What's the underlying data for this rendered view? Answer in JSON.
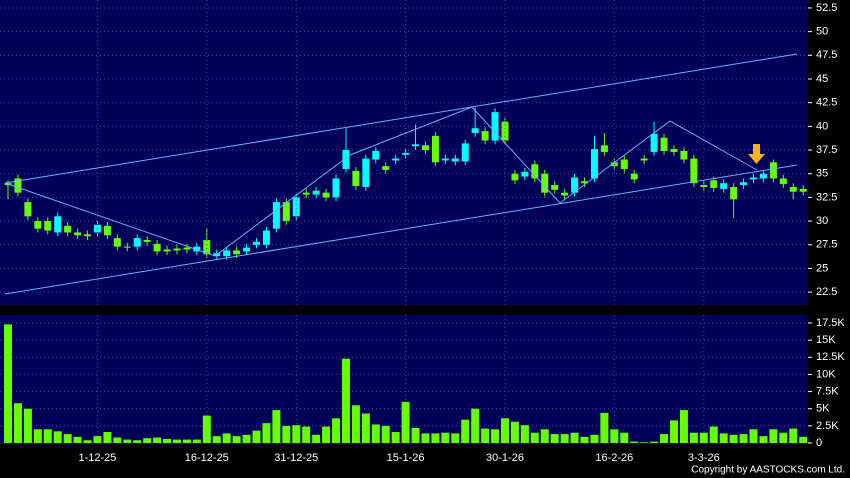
{
  "chart_data": [
    {
      "type": "candlestick",
      "open": [
        34.0,
        34.5,
        32.0,
        30.0,
        30.0,
        28.8,
        29.5,
        28.8,
        28.6,
        28.8,
        29.5,
        28.2,
        27.3,
        27.3,
        28.0,
        27.6,
        27.0,
        27.1,
        27.2,
        26.8,
        28.0,
        26.3,
        26.3,
        26.9,
        26.8,
        27.5,
        27.5,
        29.2,
        32.0,
        30.5,
        33.0,
        32.8,
        33.0,
        32.5,
        35.5,
        35.3,
        33.6,
        36.5,
        35.8,
        36.4,
        37.0,
        37.9,
        38.0,
        39.0,
        36.4,
        36.3,
        36.3,
        39.3,
        39.5,
        38.5,
        40.5,
        35.0,
        34.7,
        36.0,
        35.0,
        33.8,
        33.0,
        33.0,
        34.2,
        34.5,
        38.0,
        36.2,
        36.5,
        35.0,
        36.6,
        37.3,
        38.8,
        37.6,
        37.4,
        36.6,
        33.8,
        34.3,
        33.4,
        33.6,
        33.8,
        34.4,
        34.5,
        36.2,
        34.5,
        33.6,
        33.4
      ],
      "high": [
        34.3,
        34.9,
        32.4,
        30.4,
        30.4,
        30.9,
        29.9,
        29.2,
        29.0,
        30.0,
        29.9,
        28.6,
        27.7,
        28.6,
        28.4,
        28.0,
        27.4,
        27.5,
        27.6,
        27.7,
        29.2,
        27.0,
        27.3,
        27.3,
        27.6,
        28.2,
        29.4,
        32.4,
        32.4,
        32.9,
        33.4,
        33.6,
        33.4,
        34.9,
        39.8,
        35.7,
        37.0,
        37.8,
        36.2,
        37.0,
        37.6,
        40.2,
        38.4,
        39.4,
        37.0,
        37.0,
        38.6,
        42.0,
        39.9,
        41.9,
        40.9,
        35.4,
        35.6,
        36.4,
        35.4,
        34.2,
        33.4,
        35.0,
        34.6,
        39.0,
        39.3,
        36.6,
        36.9,
        35.4,
        37.0,
        40.5,
        39.2,
        38.0,
        37.8,
        37.0,
        34.2,
        34.7,
        34.4,
        34.0,
        34.5,
        35.0,
        35.4,
        36.5,
        34.9,
        34.0,
        33.8
      ],
      "low": [
        32.3,
        32.6,
        30.1,
        28.8,
        28.6,
        28.4,
        28.4,
        28.1,
        28.0,
        28.4,
        28.1,
        26.9,
        26.8,
        26.9,
        27.4,
        26.4,
        26.4,
        26.5,
        26.6,
        26.4,
        26.1,
        25.9,
        25.9,
        26.1,
        26.4,
        27.1,
        27.1,
        28.8,
        29.6,
        30.1,
        32.4,
        32.4,
        32.1,
        32.1,
        35.1,
        33.3,
        33.2,
        36.1,
        35.0,
        36.0,
        36.6,
        37.5,
        37.1,
        35.8,
        36.0,
        35.9,
        35.9,
        38.9,
        38.1,
        38.1,
        38.1,
        33.9,
        34.3,
        34.1,
        32.6,
        32.9,
        32.3,
        32.6,
        33.6,
        34.1,
        36.9,
        35.4,
        35.1,
        34.0,
        36.0,
        36.9,
        37.0,
        36.9,
        36.1,
        33.6,
        33.2,
        33.1,
        33.0,
        30.3,
        33.4,
        34.0,
        34.1,
        34.1,
        33.5,
        32.3,
        32.7
      ],
      "close": [
        33.8,
        33.0,
        30.5,
        29.2,
        29.0,
        30.5,
        28.8,
        28.5,
        28.4,
        29.6,
        28.5,
        27.3,
        27.2,
        28.2,
        27.8,
        26.8,
        26.8,
        26.9,
        27.0,
        27.3,
        26.5,
        26.6,
        26.9,
        26.5,
        27.2,
        27.8,
        29.0,
        32.0,
        30.0,
        32.5,
        32.8,
        33.2,
        32.5,
        34.5,
        37.5,
        33.7,
        36.6,
        37.4,
        35.4,
        36.6,
        37.2,
        38.1,
        37.5,
        36.2,
        36.6,
        36.6,
        38.2,
        39.8,
        38.5,
        41.5,
        38.5,
        34.3,
        35.2,
        34.5,
        33.0,
        33.3,
        32.7,
        34.6,
        34.0,
        37.6,
        37.3,
        35.8,
        35.5,
        34.4,
        36.4,
        39.2,
        37.4,
        37.3,
        36.5,
        34.0,
        33.6,
        33.5,
        34.0,
        32.3,
        34.1,
        34.6,
        35.0,
        34.5,
        33.9,
        33.1,
        33.1
      ],
      "up_color": "#00ffff",
      "down_color": "#66ff00",
      "ylim": [
        21.14,
        53.34
      ],
      "yticks": [
        22.5,
        25,
        27.5,
        30,
        32.5,
        35,
        37.5,
        40,
        42.5,
        45,
        47.5,
        50,
        52.5
      ],
      "grid": true
    },
    {
      "type": "bar",
      "categories": [
        null,
        null,
        null,
        null,
        null,
        null,
        null,
        null,
        null,
        "1-12-25",
        null,
        null,
        null,
        null,
        null,
        null,
        null,
        null,
        null,
        null,
        "16-12-25",
        null,
        null,
        null,
        null,
        null,
        null,
        null,
        null,
        "31-12-25",
        null,
        null,
        null,
        null,
        null,
        null,
        null,
        null,
        null,
        null,
        "15-1-26",
        null,
        null,
        null,
        null,
        null,
        null,
        null,
        null,
        null,
        "30-1-26",
        null,
        null,
        null,
        null,
        null,
        null,
        null,
        null,
        null,
        null,
        "16-2-26",
        null,
        null,
        null,
        null,
        null,
        null,
        null,
        null,
        "3-3-26",
        null,
        null,
        null,
        null,
        null,
        null,
        null,
        null,
        null,
        null
      ],
      "values": [
        17300,
        5800,
        5000,
        2000,
        2000,
        1700,
        1300,
        900,
        400,
        1000,
        1600,
        800,
        500,
        400,
        700,
        800,
        600,
        500,
        500,
        500,
        4000,
        1000,
        1400,
        1000,
        1200,
        1800,
        2900,
        4800,
        2500,
        2600,
        2400,
        1200,
        2400,
        3600,
        12300,
        5500,
        4300,
        2700,
        2500,
        1600,
        6000,
        2200,
        1400,
        1400,
        1500,
        1400,
        3400,
        5000,
        2100,
        2000,
        3600,
        3100,
        2600,
        1500,
        2000,
        1300,
        1300,
        1500,
        900,
        1200,
        4400,
        2000,
        1500,
        200,
        100,
        200,
        1300,
        3300,
        4800,
        1500,
        1500,
        2400,
        1400,
        1200,
        1300,
        2000,
        1000,
        2000,
        1500,
        2100,
        900
      ],
      "color": "#66ff00",
      "ylim": [
        0,
        18667
      ],
      "yticks": [
        0,
        {
          "value": 2500,
          "label": "2.5K"
        },
        {
          "value": 5000,
          "label": "5K"
        },
        {
          "value": 7500,
          "label": "7.5K"
        },
        {
          "value": 10000,
          "label": "10K"
        },
        {
          "value": 12500,
          "label": "12.5K"
        },
        {
          "value": 15000,
          "label": "15K"
        },
        {
          "value": 17500,
          "label": "17.5K"
        }
      ],
      "grid": true
    }
  ],
  "copyright": "Copyright by AASTOCKS.com Ltd."
}
